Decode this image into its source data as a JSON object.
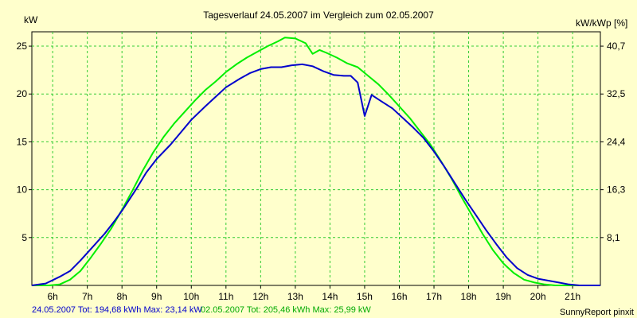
{
  "chart_data": {
    "type": "line",
    "title": "Tagesverlauf 24.05.2007 im Vergleich zum 02.05.2007",
    "ylabel_left": "kW",
    "ylabel_right": "kW/kWp [%]",
    "xlim": [
      5.4,
      21.8
    ],
    "ylim": [
      0,
      26.5
    ],
    "grid": true,
    "x_ticks": [
      6,
      7,
      8,
      9,
      10,
      11,
      12,
      13,
      14,
      15,
      16,
      17,
      18,
      19,
      20,
      21
    ],
    "x_tick_labels": [
      "6h",
      "7h",
      "8h",
      "9h",
      "10h",
      "11h",
      "12h",
      "13h",
      "14h",
      "15h",
      "16h",
      "17h",
      "18h",
      "19h",
      "20h",
      "21h"
    ],
    "y_ticks": [
      5,
      10,
      15,
      20,
      25
    ],
    "y_tick_labels": [
      "5",
      "10",
      "15",
      "20",
      "25"
    ],
    "y2_tick_labels": [
      "8,1",
      "16,3",
      "24,4",
      "32,5",
      "40,7"
    ],
    "series": [
      {
        "color": "#0000cc",
        "points": [
          [
            5.4,
            0
          ],
          [
            5.8,
            0.2
          ],
          [
            6.2,
            0.9
          ],
          [
            6.5,
            1.5
          ],
          [
            6.8,
            2.6
          ],
          [
            7.1,
            3.8
          ],
          [
            7.5,
            5.4
          ],
          [
            7.8,
            6.8
          ],
          [
            8.0,
            7.8
          ],
          [
            8.4,
            10.0
          ],
          [
            8.7,
            11.8
          ],
          [
            9.0,
            13.2
          ],
          [
            9.4,
            14.7
          ],
          [
            9.7,
            16.0
          ],
          [
            10.0,
            17.3
          ],
          [
            10.4,
            18.7
          ],
          [
            10.7,
            19.7
          ],
          [
            11.0,
            20.7
          ],
          [
            11.4,
            21.6
          ],
          [
            11.7,
            22.2
          ],
          [
            12.0,
            22.6
          ],
          [
            12.3,
            22.8
          ],
          [
            12.6,
            22.8
          ],
          [
            12.9,
            23.0
          ],
          [
            13.2,
            23.1
          ],
          [
            13.5,
            22.9
          ],
          [
            13.8,
            22.4
          ],
          [
            14.1,
            22.0
          ],
          [
            14.4,
            21.9
          ],
          [
            14.6,
            21.9
          ],
          [
            14.8,
            21.2
          ],
          [
            15.0,
            17.7
          ],
          [
            15.2,
            19.9
          ],
          [
            15.5,
            19.2
          ],
          [
            15.8,
            18.5
          ],
          [
            16.1,
            17.5
          ],
          [
            16.4,
            16.5
          ],
          [
            16.7,
            15.4
          ],
          [
            17.0,
            14.0
          ],
          [
            17.3,
            12.4
          ],
          [
            17.6,
            10.7
          ],
          [
            17.9,
            9.0
          ],
          [
            18.2,
            7.4
          ],
          [
            18.5,
            5.8
          ],
          [
            18.8,
            4.3
          ],
          [
            19.1,
            2.9
          ],
          [
            19.4,
            1.8
          ],
          [
            19.7,
            1.1
          ],
          [
            20.0,
            0.7
          ],
          [
            20.3,
            0.5
          ],
          [
            20.6,
            0.3
          ],
          [
            20.9,
            0.1
          ],
          [
            21.2,
            0
          ],
          [
            21.8,
            0
          ]
        ]
      },
      {
        "color": "#00ee00",
        "points": [
          [
            5.4,
            0
          ],
          [
            5.9,
            0
          ],
          [
            6.2,
            0.1
          ],
          [
            6.5,
            0.6
          ],
          [
            6.8,
            1.5
          ],
          [
            7.1,
            2.9
          ],
          [
            7.4,
            4.4
          ],
          [
            7.7,
            6.0
          ],
          [
            8.0,
            7.9
          ],
          [
            8.3,
            9.9
          ],
          [
            8.6,
            12.0
          ],
          [
            8.9,
            13.9
          ],
          [
            9.2,
            15.5
          ],
          [
            9.5,
            16.9
          ],
          [
            9.8,
            18.1
          ],
          [
            10.1,
            19.3
          ],
          [
            10.4,
            20.4
          ],
          [
            10.7,
            21.3
          ],
          [
            11.0,
            22.3
          ],
          [
            11.3,
            23.1
          ],
          [
            11.6,
            23.8
          ],
          [
            11.9,
            24.4
          ],
          [
            12.2,
            25.0
          ],
          [
            12.5,
            25.5
          ],
          [
            12.7,
            25.9
          ],
          [
            13.0,
            25.8
          ],
          [
            13.3,
            25.3
          ],
          [
            13.5,
            24.2
          ],
          [
            13.7,
            24.6
          ],
          [
            13.9,
            24.3
          ],
          [
            14.2,
            23.8
          ],
          [
            14.5,
            23.2
          ],
          [
            14.8,
            22.8
          ],
          [
            15.1,
            21.9
          ],
          [
            15.4,
            21.0
          ],
          [
            15.7,
            19.9
          ],
          [
            16.0,
            18.7
          ],
          [
            16.3,
            17.5
          ],
          [
            16.6,
            16.1
          ],
          [
            16.9,
            14.7
          ],
          [
            17.2,
            13.0
          ],
          [
            17.5,
            11.2
          ],
          [
            17.8,
            9.2
          ],
          [
            18.1,
            7.3
          ],
          [
            18.4,
            5.4
          ],
          [
            18.7,
            3.7
          ],
          [
            19.0,
            2.3
          ],
          [
            19.3,
            1.3
          ],
          [
            19.6,
            0.6
          ],
          [
            19.9,
            0.3
          ],
          [
            20.2,
            0.1
          ],
          [
            20.5,
            0
          ],
          [
            21.8,
            0
          ]
        ]
      }
    ]
  },
  "footer": {
    "series1_text": "24.05.2007 Tot: 194,68 kWh Max: 23,14 kW",
    "series2_text": "02.05.2007 Tot: 205,46 kWh Max: 25,99 kW",
    "credit": "SunnyReport pinxit"
  },
  "colors": {
    "background": "#ffffcc",
    "plot_background": "#ffffcc",
    "grid": "#33cc33",
    "series1": "#0000cc",
    "series2": "#00ee00"
  }
}
